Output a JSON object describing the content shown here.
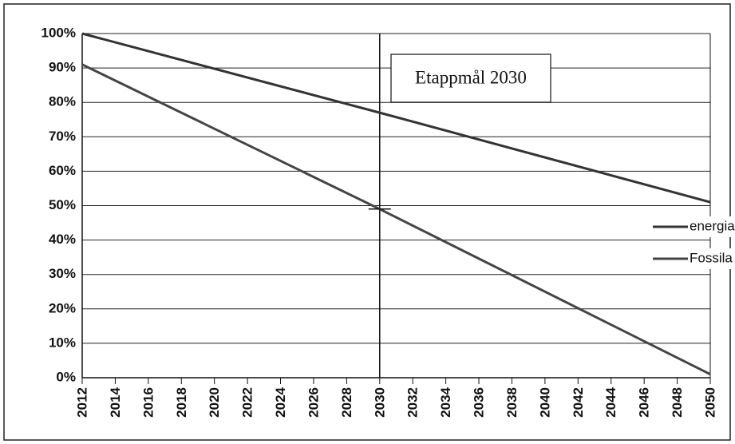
{
  "chart_data": {
    "type": "line",
    "x": [
      2012,
      2030,
      2050
    ],
    "series": [
      {
        "name": "energianvändning",
        "color": "#333333",
        "values": [
          100,
          77,
          51
        ]
      },
      {
        "name": "Fossila drivmedel",
        "color": "#444444",
        "values": [
          91,
          49,
          1
        ]
      }
    ],
    "xlim": [
      2012,
      2050
    ],
    "xticks": [
      2012,
      2014,
      2016,
      2018,
      2020,
      2022,
      2024,
      2026,
      2028,
      2030,
      2032,
      2034,
      2036,
      2038,
      2040,
      2042,
      2044,
      2046,
      2048,
      2050
    ],
    "ylim": [
      0,
      100
    ],
    "yticks": [
      {
        "value": 0,
        "label": "0%"
      },
      {
        "value": 10,
        "label": "10%"
      },
      {
        "value": 20,
        "label": "20%"
      },
      {
        "value": 30,
        "label": "30%"
      },
      {
        "value": 40,
        "label": "40%"
      },
      {
        "value": 50,
        "label": "50%"
      },
      {
        "value": 60,
        "label": "60%"
      },
      {
        "value": 70,
        "label": "70%"
      },
      {
        "value": 80,
        "label": "80%"
      },
      {
        "value": 90,
        "label": "90%"
      },
      {
        "value": 100,
        "label": "100%"
      }
    ],
    "grid": true,
    "legend": "right",
    "annotation": {
      "text": "Etappmål 2030",
      "x": 2030
    }
  }
}
